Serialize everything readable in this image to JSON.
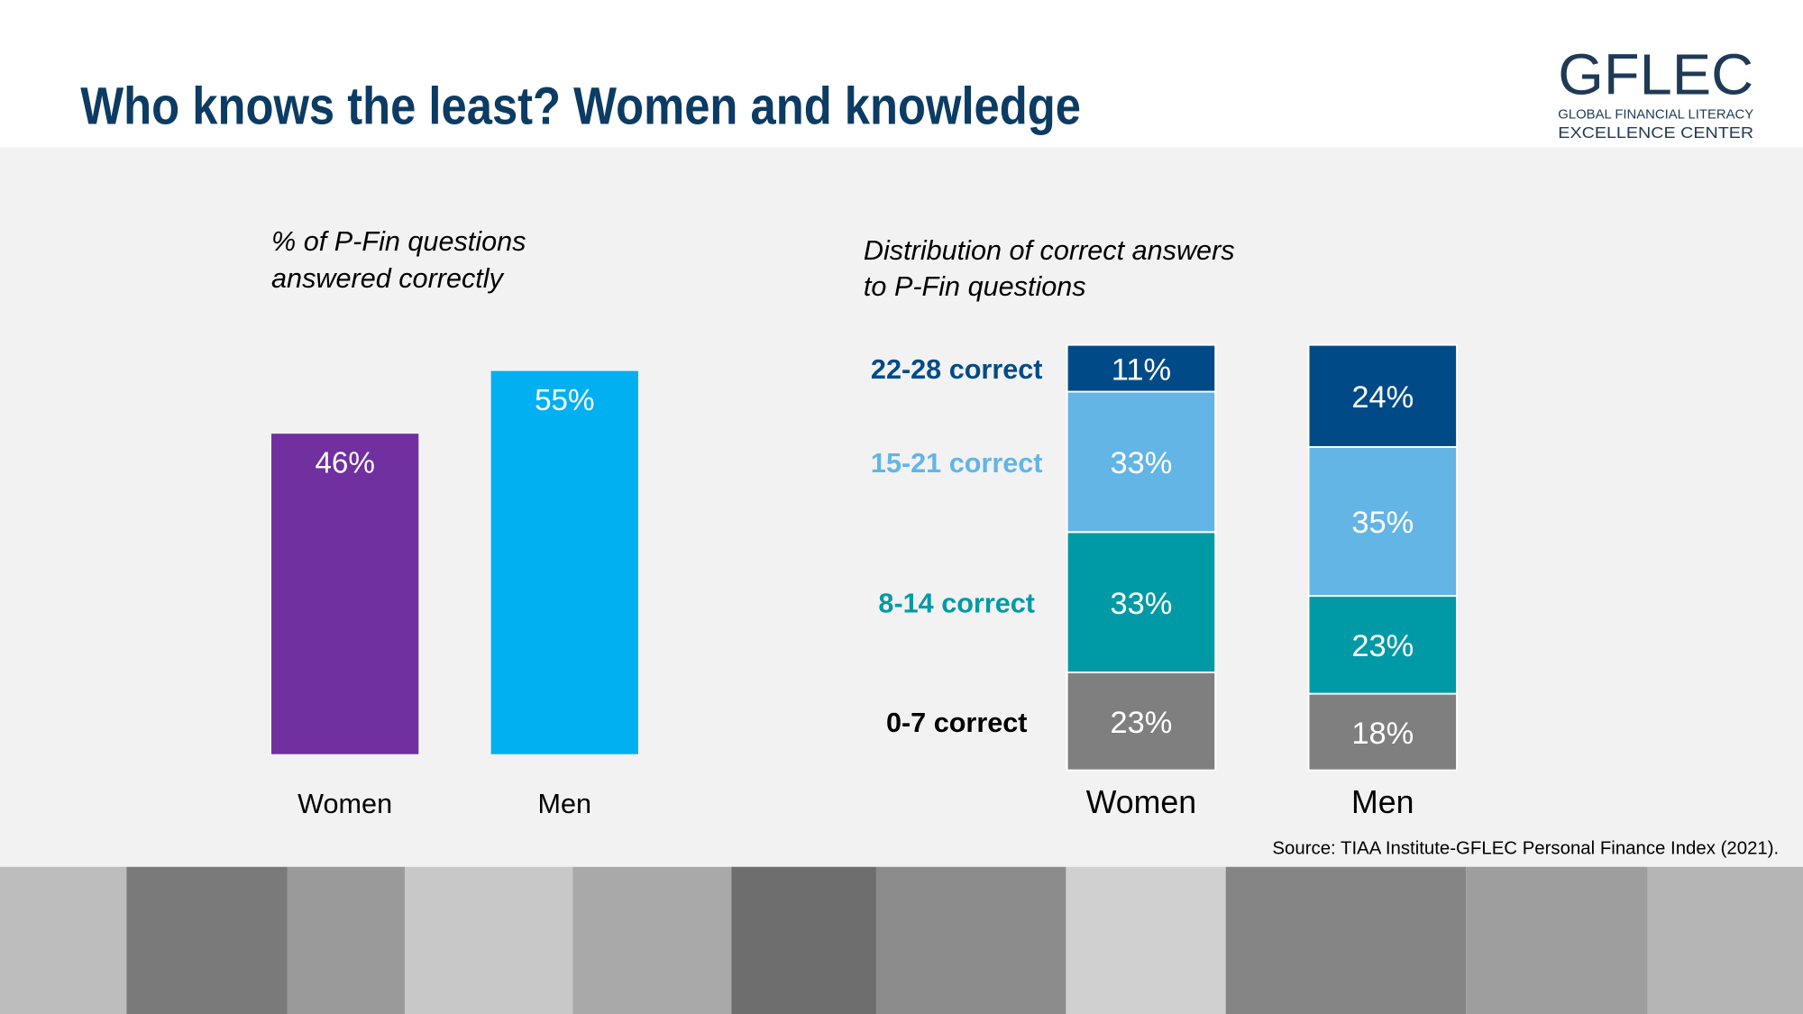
{
  "title": "Who knows the least? Women and knowledge",
  "logo": {
    "name": "GFLEC",
    "line1": "GLOBAL FINANCIAL LITERACY",
    "line2": "EXCELLENCE CENTER"
  },
  "source": "Source: TIAA Institute-GFLEC Personal Finance Index (2021).",
  "chart_data": [
    {
      "type": "bar",
      "title": [
        "% of P-Fin questions",
        "answered correctly"
      ],
      "categories": [
        "Women",
        "Men"
      ],
      "values": [
        46,
        55
      ],
      "value_labels": [
        "46%",
        "55%"
      ],
      "colors": [
        "#7030a0",
        "#00b0f0"
      ]
    },
    {
      "type": "stacked_bar",
      "title": [
        "Distribution of correct answers",
        "to P-Fin questions"
      ],
      "categories": [
        "Women",
        "Men"
      ],
      "series": [
        {
          "name": "0-7 correct",
          "color": "#7f7f7f",
          "label_color": "#000000",
          "values": [
            23,
            18
          ],
          "value_labels": [
            "23%",
            "18%"
          ]
        },
        {
          "name": "8-14 correct",
          "color": "#009aa6",
          "label_color": "#009aa6",
          "values": [
            33,
            23
          ],
          "value_labels": [
            "33%",
            "23%"
          ]
        },
        {
          "name": "15-21 correct",
          "color": "#62b5e5",
          "label_color": "#62b5e5",
          "values": [
            33,
            35
          ],
          "value_labels": [
            "33%",
            "35%"
          ]
        },
        {
          "name": "22-28 correct",
          "color": "#004b87",
          "label_color": "#004b87",
          "values": [
            11,
            24
          ],
          "value_labels": [
            "11%",
            "24%"
          ]
        }
      ]
    }
  ]
}
